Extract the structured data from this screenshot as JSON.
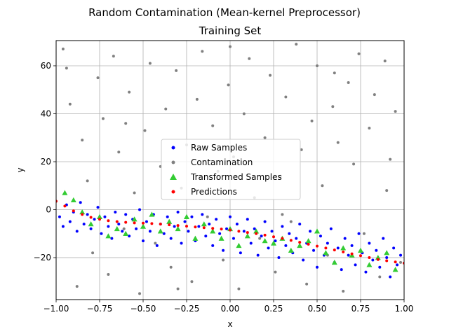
{
  "chart_data": {
    "type": "scatter",
    "title": "Random Contamination (Mean-kernel Preprocessor)",
    "subtitle": "Training Set",
    "xlabel": "x",
    "ylabel": "y",
    "xlim": [
      -1.0,
      1.0
    ],
    "ylim": [
      -37.5,
      70.5
    ],
    "grid": true,
    "legend_position": "center",
    "x_ticks": [
      {
        "value": -1.0,
        "label": "−1.00"
      },
      {
        "value": -0.75,
        "label": "−0.75"
      },
      {
        "value": -0.5,
        "label": "−0.50"
      },
      {
        "value": -0.25,
        "label": "−0.25"
      },
      {
        "value": 0.0,
        "label": "0.00"
      },
      {
        "value": 0.25,
        "label": "0.25"
      },
      {
        "value": 0.5,
        "label": "0.50"
      },
      {
        "value": 0.75,
        "label": "0.75"
      },
      {
        "value": 1.0,
        "label": "1.00"
      }
    ],
    "y_ticks": [
      {
        "value": -20,
        "label": "−20"
      },
      {
        "value": 0,
        "label": "0"
      },
      {
        "value": 20,
        "label": "20"
      },
      {
        "value": 40,
        "label": "40"
      },
      {
        "value": 60,
        "label": "60"
      }
    ],
    "series": [
      {
        "name": "Raw Samples",
        "marker": "dot",
        "color": "#0000ff",
        "points": [
          [
            -0.98,
            -3
          ],
          [
            -0.96,
            -7
          ],
          [
            -0.94,
            2
          ],
          [
            -0.92,
            -5
          ],
          [
            -0.9,
            -1
          ],
          [
            -0.88,
            -9
          ],
          [
            -0.86,
            3
          ],
          [
            -0.84,
            -6
          ],
          [
            -0.82,
            -2
          ],
          [
            -0.8,
            -8
          ],
          [
            -0.78,
            -4
          ],
          [
            -0.76,
            1
          ],
          [
            -0.74,
            -10
          ],
          [
            -0.72,
            -3
          ],
          [
            -0.7,
            -7
          ],
          [
            -0.68,
            -12
          ],
          [
            -0.66,
            -1
          ],
          [
            -0.64,
            -6
          ],
          [
            -0.62,
            -9
          ],
          [
            -0.6,
            -2
          ],
          [
            -0.58,
            -11
          ],
          [
            -0.56,
            -4
          ],
          [
            -0.54,
            -8
          ],
          [
            -0.52,
            0
          ],
          [
            -0.5,
            -13
          ],
          [
            -0.48,
            -5
          ],
          [
            -0.46,
            -9
          ],
          [
            -0.44,
            -2
          ],
          [
            -0.42,
            -15
          ],
          [
            -0.4,
            -6
          ],
          [
            -0.38,
            -10
          ],
          [
            -0.36,
            -3
          ],
          [
            -0.34,
            -12
          ],
          [
            -0.32,
            -7
          ],
          [
            -0.3,
            -1
          ],
          [
            -0.28,
            -14
          ],
          [
            -0.26,
            -5
          ],
          [
            -0.24,
            -9
          ],
          [
            -0.22,
            -3
          ],
          [
            -0.2,
            -13
          ],
          [
            -0.18,
            -7
          ],
          [
            -0.16,
            -2
          ],
          [
            -0.14,
            -11
          ],
          [
            -0.12,
            -6
          ],
          [
            -0.1,
            -15
          ],
          [
            -0.08,
            -4
          ],
          [
            -0.06,
            -10
          ],
          [
            -0.04,
            -17
          ],
          [
            -0.02,
            -8
          ],
          [
            0.0,
            -3
          ],
          [
            0.02,
            -12
          ],
          [
            0.04,
            -6
          ],
          [
            0.06,
            -18
          ],
          [
            0.08,
            -9
          ],
          [
            0.1,
            -4
          ],
          [
            0.12,
            -14
          ],
          [
            0.14,
            -8
          ],
          [
            0.16,
            -19
          ],
          [
            0.18,
            -11
          ],
          [
            0.2,
            -5
          ],
          [
            0.22,
            -16
          ],
          [
            0.24,
            -9
          ],
          [
            0.26,
            -13
          ],
          [
            0.28,
            -20
          ],
          [
            0.3,
            -7
          ],
          [
            0.32,
            -15
          ],
          [
            0.34,
            -10
          ],
          [
            0.36,
            -18
          ],
          [
            0.38,
            -12
          ],
          [
            0.4,
            -6
          ],
          [
            0.42,
            -21
          ],
          [
            0.44,
            -14
          ],
          [
            0.46,
            -9
          ],
          [
            0.48,
            -17
          ],
          [
            0.5,
            -24
          ],
          [
            0.52,
            -11
          ],
          [
            0.54,
            -19
          ],
          [
            0.56,
            -14
          ],
          [
            0.58,
            -8
          ],
          [
            0.6,
            -22
          ],
          [
            0.62,
            -16
          ],
          [
            0.64,
            -25
          ],
          [
            0.66,
            -12
          ],
          [
            0.68,
            -19
          ],
          [
            0.7,
            -15
          ],
          [
            0.72,
            -23
          ],
          [
            0.74,
            -10
          ],
          [
            0.76,
            -18
          ],
          [
            0.78,
            -26
          ],
          [
            0.8,
            -14
          ],
          [
            0.82,
            -21
          ],
          [
            0.84,
            -17
          ],
          [
            0.86,
            -24
          ],
          [
            0.88,
            -12
          ],
          [
            0.9,
            -20
          ],
          [
            0.92,
            -28
          ],
          [
            0.94,
            -16
          ],
          [
            0.96,
            -23
          ],
          [
            0.98,
            -19
          ]
        ]
      },
      {
        "name": "Contamination",
        "marker": "dot",
        "color": "#808080",
        "points": [
          [
            -0.96,
            67
          ],
          [
            -0.92,
            44
          ],
          [
            -0.88,
            -32
          ],
          [
            -0.85,
            29
          ],
          [
            -0.82,
            12
          ],
          [
            -0.79,
            -18
          ],
          [
            -0.76,
            55
          ],
          [
            -0.73,
            38
          ],
          [
            -0.7,
            -27
          ],
          [
            -0.67,
            64
          ],
          [
            -0.64,
            24
          ],
          [
            -0.61,
            -8
          ],
          [
            -0.58,
            49
          ],
          [
            -0.55,
            7
          ],
          [
            -0.52,
            -35
          ],
          [
            -0.49,
            33
          ],
          [
            -0.46,
            61
          ],
          [
            -0.43,
            -14
          ],
          [
            -0.4,
            18
          ],
          [
            -0.37,
            42
          ],
          [
            -0.34,
            -24
          ],
          [
            -0.31,
            58
          ],
          [
            -0.28,
            9
          ],
          [
            -0.25,
            27
          ],
          [
            -0.22,
            -30
          ],
          [
            -0.19,
            46
          ],
          [
            -0.16,
            66
          ],
          [
            -0.13,
            -3
          ],
          [
            -0.1,
            35
          ],
          [
            -0.07,
            16
          ],
          [
            -0.04,
            -21
          ],
          [
            -0.01,
            52
          ],
          [
            0.02,
            22
          ],
          [
            0.05,
            -33
          ],
          [
            0.08,
            40
          ],
          [
            0.11,
            63
          ],
          [
            0.14,
            5
          ],
          [
            0.17,
            -12
          ],
          [
            0.2,
            30
          ],
          [
            0.23,
            56
          ],
          [
            0.26,
            -26
          ],
          [
            0.29,
            14
          ],
          [
            0.32,
            47
          ],
          [
            0.35,
            -5
          ],
          [
            0.38,
            69
          ],
          [
            0.41,
            25
          ],
          [
            0.44,
            -31
          ],
          [
            0.47,
            37
          ],
          [
            0.5,
            60
          ],
          [
            0.53,
            10
          ],
          [
            0.56,
            -19
          ],
          [
            0.59,
            43
          ],
          [
            0.62,
            28
          ],
          [
            0.65,
            -34
          ],
          [
            0.68,
            53
          ],
          [
            0.71,
            19
          ],
          [
            0.74,
            65
          ],
          [
            0.77,
            -10
          ],
          [
            0.8,
            34
          ],
          [
            0.83,
            48
          ],
          [
            0.86,
            -28
          ],
          [
            0.89,
            62
          ],
          [
            0.92,
            21
          ],
          [
            0.95,
            41
          ],
          [
            0.98,
            -22
          ],
          [
            -0.94,
            59
          ],
          [
            -0.6,
            36
          ],
          [
            -0.3,
            -33
          ],
          [
            0.0,
            68
          ],
          [
            0.3,
            -2
          ],
          [
            0.6,
            57
          ],
          [
            0.9,
            8
          ]
        ]
      },
      {
        "name": "Transformed Samples",
        "marker": "triangle",
        "color": "#33cc33",
        "points": [
          [
            -0.95,
            7
          ],
          [
            -0.9,
            4
          ],
          [
            -0.85,
            -1
          ],
          [
            -0.8,
            -6
          ],
          [
            -0.75,
            -3
          ],
          [
            -0.7,
            -11
          ],
          [
            -0.65,
            -8
          ],
          [
            -0.6,
            -10
          ],
          [
            -0.55,
            -4
          ],
          [
            -0.5,
            -7
          ],
          [
            -0.45,
            -2
          ],
          [
            -0.4,
            -9
          ],
          [
            -0.35,
            -5
          ],
          [
            -0.3,
            -8
          ],
          [
            -0.25,
            -3
          ],
          [
            -0.2,
            -12
          ],
          [
            -0.15,
            -6
          ],
          [
            -0.1,
            -9
          ],
          [
            -0.05,
            -12
          ],
          [
            0.0,
            -8
          ],
          [
            0.05,
            -15
          ],
          [
            0.1,
            -11
          ],
          [
            0.15,
            -9
          ],
          [
            0.2,
            -13
          ],
          [
            0.25,
            -14
          ],
          [
            0.3,
            -12
          ],
          [
            0.35,
            -17
          ],
          [
            0.4,
            -15
          ],
          [
            0.45,
            -13
          ],
          [
            0.5,
            -9
          ],
          [
            0.55,
            -18
          ],
          [
            0.6,
            -22
          ],
          [
            0.65,
            -16
          ],
          [
            0.7,
            -19
          ],
          [
            0.75,
            -17
          ],
          [
            0.8,
            -23
          ],
          [
            0.85,
            -20
          ],
          [
            0.9,
            -18
          ],
          [
            0.95,
            -25
          ]
        ]
      },
      {
        "name": "Predictions",
        "marker": "dot",
        "color": "#ff0000",
        "points": [
          [
            -1.0,
            3.5
          ],
          [
            -0.95,
            1.5
          ],
          [
            -0.9,
            -0.5
          ],
          [
            -0.85,
            -2
          ],
          [
            -0.8,
            -3.2
          ],
          [
            -0.75,
            -4
          ],
          [
            -0.7,
            -4.6
          ],
          [
            -0.65,
            -5
          ],
          [
            -0.6,
            -5.3
          ],
          [
            -0.55,
            -5.5
          ],
          [
            -0.5,
            -5.6
          ],
          [
            -0.45,
            -5.8
          ],
          [
            -0.4,
            -6
          ],
          [
            -0.35,
            -6.3
          ],
          [
            -0.3,
            -6.6
          ],
          [
            -0.25,
            -6.9
          ],
          [
            -0.2,
            -7.2
          ],
          [
            -0.15,
            -7.5
          ],
          [
            -0.1,
            -7.8
          ],
          [
            -0.05,
            -8.1
          ],
          [
            0.0,
            -8.5
          ],
          [
            0.05,
            -9
          ],
          [
            0.1,
            -9.5
          ],
          [
            0.15,
            -10
          ],
          [
            0.2,
            -10.6
          ],
          [
            0.25,
            -11.3
          ],
          [
            0.3,
            -12
          ],
          [
            0.35,
            -12.8
          ],
          [
            0.4,
            -13.6
          ],
          [
            0.45,
            -14.4
          ],
          [
            0.5,
            -15.2
          ],
          [
            0.55,
            -16
          ],
          [
            0.6,
            -16.8
          ],
          [
            0.65,
            -17.6
          ],
          [
            0.7,
            -18.4
          ],
          [
            0.75,
            -19.2
          ],
          [
            0.8,
            -20
          ],
          [
            0.85,
            -20.8
          ],
          [
            0.9,
            -21.3
          ],
          [
            0.95,
            -21.8
          ],
          [
            1.0,
            -22.3
          ]
        ]
      }
    ]
  }
}
